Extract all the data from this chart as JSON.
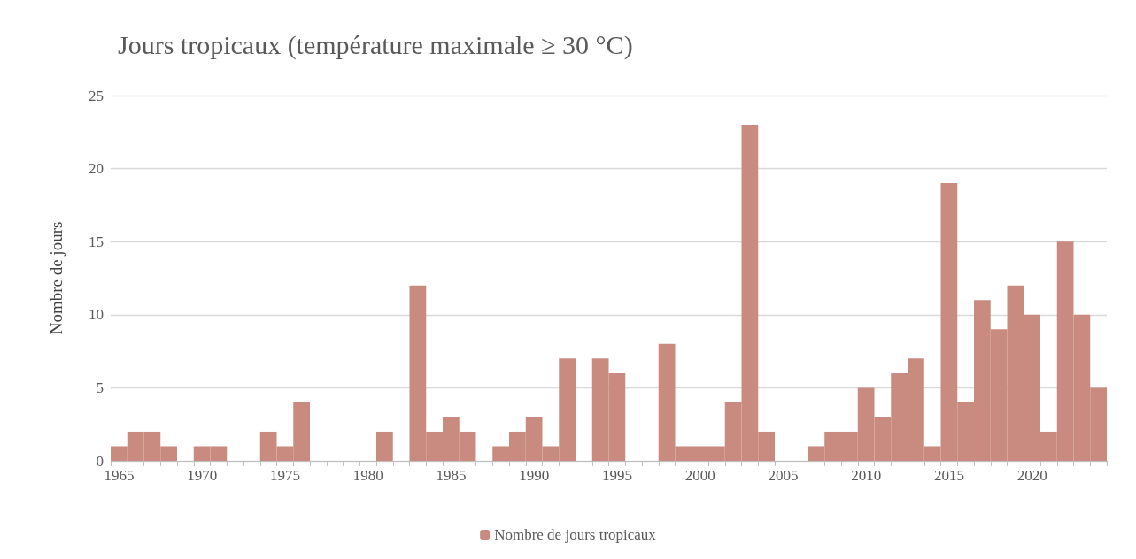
{
  "chart_data": {
    "type": "bar",
    "title": "Jours tropicaux (température maximale ≥ 30 °C)",
    "ylabel": "Nombre de jours",
    "categories": [
      "1965",
      null,
      null,
      null,
      null,
      "1970",
      null,
      null,
      null,
      null,
      "1975",
      null,
      null,
      null,
      null,
      "1980",
      null,
      null,
      null,
      null,
      "1985",
      null,
      null,
      null,
      null,
      "1990",
      null,
      null,
      null,
      null,
      "1995",
      null,
      null,
      null,
      null,
      "2000",
      null,
      null,
      null,
      null,
      "2005",
      null,
      null,
      null,
      null,
      "2010",
      null,
      null,
      null,
      null,
      "2015",
      null,
      null,
      null,
      null,
      "2020",
      null,
      null,
      null,
      null
    ],
    "series": [
      {
        "name": "Nombre de jours tropicaux",
        "color": "#c98a7f",
        "values": [
          1,
          2,
          2,
          1,
          0,
          1,
          1,
          0,
          0,
          2,
          1,
          4,
          0,
          0,
          0,
          0,
          2,
          0,
          12,
          2,
          3,
          2,
          0,
          1,
          2,
          3,
          1,
          7,
          0,
          7,
          6,
          0,
          0,
          8,
          1,
          1,
          1,
          4,
          23,
          2,
          0,
          0,
          1,
          2,
          2,
          5,
          3,
          6,
          7,
          1,
          19,
          4,
          11,
          9,
          12,
          10,
          2,
          15,
          10,
          5
        ]
      }
    ],
    "ylim": [
      0,
      25
    ],
    "yticks": [
      0,
      5,
      10,
      15,
      20,
      25
    ],
    "grid": "y",
    "legend": "bottom"
  }
}
